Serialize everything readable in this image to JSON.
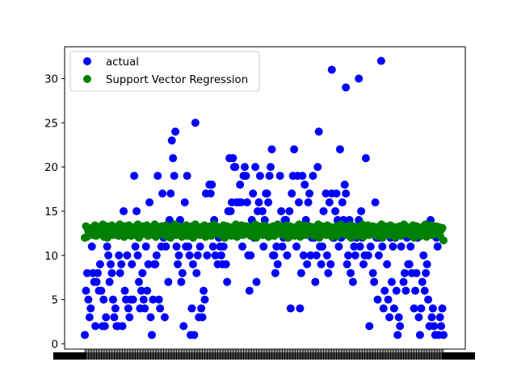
{
  "chart_data": {
    "type": "scatter",
    "title": "",
    "xlabel": "",
    "ylabel": "",
    "ylim": [
      -0.6,
      33.6
    ],
    "yticks": [
      0,
      5,
      10,
      15,
      20,
      25,
      30
    ],
    "legend": {
      "placement": "top-left"
    },
    "grid": false,
    "series": [
      {
        "name": "actual",
        "color": "#0000ff",
        "values": [
          1,
          6,
          8,
          5,
          3,
          4,
          11,
          8,
          7,
          2,
          7,
          8,
          6,
          9,
          6,
          2,
          5,
          2,
          3,
          11,
          10,
          7,
          9,
          8,
          5,
          3,
          4,
          2,
          2,
          10,
          8,
          9,
          2,
          15,
          6,
          5,
          10,
          4,
          3,
          5,
          9,
          5,
          19,
          11,
          15,
          10,
          7,
          4,
          6,
          8,
          5,
          4,
          11,
          6,
          9,
          16,
          3,
          1,
          5,
          9,
          9,
          10,
          19,
          5,
          4,
          11,
          17,
          12,
          3,
          11,
          13,
          7,
          14,
          17,
          23,
          21,
          19,
          24,
          11,
          9,
          10,
          14,
          7,
          8,
          2,
          16,
          11,
          19,
          11,
          10,
          1,
          4,
          9,
          1,
          25,
          8,
          10,
          3,
          11,
          4,
          3,
          6,
          5,
          17,
          10,
          13,
          18,
          17,
          18,
          11,
          14,
          10,
          13,
          9,
          12,
          11,
          10,
          9,
          11,
          12,
          9,
          7,
          15,
          21,
          15,
          16,
          21,
          20,
          20,
          16,
          13,
          16,
          18,
          16,
          11,
          19,
          20,
          19,
          16,
          10,
          6,
          10,
          14,
          17,
          12,
          20,
          7,
          15,
          16,
          19,
          13,
          15,
          11,
          14,
          17,
          17,
          16,
          19,
          20,
          22,
          10,
          10,
          8,
          11,
          9,
          13,
          19,
          15,
          11,
          12,
          14,
          14,
          10,
          12,
          15,
          4,
          17,
          19,
          22,
          13,
          11,
          19,
          16,
          4,
          8,
          19,
          10,
          18,
          14,
          9,
          16,
          17,
          10,
          12,
          19,
          12,
          7,
          10,
          20,
          24,
          11,
          9,
          11,
          15,
          13,
          17,
          10,
          8,
          16,
          9,
          17,
          12,
          12,
          15,
          17,
          14,
          11,
          22,
          12,
          16,
          14,
          18,
          17,
          9,
          10,
          14,
          8,
          12,
          7,
          11,
          10,
          12,
          13,
          14,
          11,
          15,
          12,
          9,
          10,
          21,
          13,
          10,
          2,
          11,
          13,
          8,
          7,
          16,
          12,
          5,
          10,
          12,
          13,
          11,
          4,
          6,
          13,
          9,
          5,
          3,
          12,
          7,
          11,
          4,
          12,
          6,
          1,
          3,
          2,
          11,
          13,
          7,
          8,
          6,
          12,
          9,
          9,
          11,
          8,
          13,
          4,
          6,
          8,
          12,
          3,
          1,
          4,
          7,
          10,
          6,
          8,
          9,
          5,
          2,
          14,
          3,
          4,
          2,
          1,
          12,
          11,
          1,
          3,
          2,
          4,
          1
        ],
        "outliers": [
          {
            "x": 210,
            "y": 31
          },
          {
            "x": 222,
            "y": 29
          },
          {
            "x": 233,
            "y": 30
          },
          {
            "x": 252,
            "y": 32
          }
        ]
      },
      {
        "name": "Support Vector Regression",
        "color": "#008000",
        "values": [
          12.0,
          13.3,
          12.1,
          12.8,
          13.0,
          12.5,
          13.1,
          12.3,
          12.9,
          13.4,
          12.2,
          12.7,
          13.2,
          12.4,
          13.0,
          12.6,
          13.5,
          12.1,
          12.8,
          13.3,
          12.0,
          13.1,
          12.5,
          12.9,
          13.4,
          12.3,
          12.7,
          13.2,
          12.6,
          13.0,
          12.2,
          13.5,
          12.4,
          12.8,
          13.1,
          12.1,
          13.3,
          12.7,
          12.9,
          13.4,
          12.5,
          12.2,
          13.0,
          12.6,
          13.2,
          12.3,
          12.8,
          13.5,
          12.0,
          13.1,
          12.9,
          12.4,
          13.3,
          12.6,
          12.7,
          13.4,
          12.2,
          13.0,
          12.5,
          12.8,
          13.2,
          12.3,
          13.5,
          12.1,
          12.9,
          13.1,
          12.6,
          12.4,
          13.3,
          12.7,
          13.0,
          12.2,
          13.4,
          12.5,
          12.8,
          13.2,
          12.0,
          13.1,
          12.6,
          12.9,
          13.5,
          12.3,
          12.7,
          13.3,
          12.4,
          13.0,
          12.1,
          13.2,
          12.8,
          12.5,
          13.4,
          12.2,
          12.9,
          13.1,
          12.6,
          13.3,
          12.0,
          12.7,
          13.5,
          12.4,
          13.0,
          12.8,
          12.3,
          13.2,
          12.5,
          12.9,
          13.4,
          12.1,
          13.1,
          12.6,
          12.7,
          13.3,
          12.2,
          13.0,
          12.4,
          13.5,
          12.8,
          12.5,
          13.2,
          12.9,
          12.3,
          13.1,
          12.6,
          13.4,
          12.0,
          12.7,
          13.3,
          12.4,
          13.0,
          12.8,
          12.2,
          13.2,
          12.5,
          12.9,
          13.5,
          12.1,
          13.1,
          12.6,
          12.7,
          13.4,
          12.3,
          13.0,
          12.4,
          13.3,
          12.8,
          12.5,
          13.2,
          12.2,
          12.9,
          13.1,
          12.6,
          13.5,
          12.0,
          12.7,
          13.3,
          12.4,
          13.0,
          12.8,
          12.3,
          13.4,
          12.5,
          12.9,
          13.2,
          12.1,
          13.1,
          12.6,
          12.7,
          13.3,
          12.2,
          13.0,
          12.4,
          13.5,
          12.8,
          12.5,
          13.2,
          12.9,
          12.3,
          13.1,
          12.6,
          13.4,
          12.0,
          12.7,
          13.3,
          12.4,
          13.0,
          12.8,
          12.2,
          13.2,
          12.5,
          12.9,
          13.5,
          12.1,
          13.1,
          12.6,
          12.7,
          13.4,
          12.3,
          13.0,
          12.4,
          13.3,
          12.8,
          12.5,
          13.2,
          12.2,
          12.9,
          13.1,
          12.6,
          13.5,
          12.0,
          12.7,
          13.3,
          12.4,
          13.0,
          12.8,
          12.3,
          13.4,
          12.5,
          12.9,
          13.2,
          12.1,
          13.1,
          12.6,
          12.7,
          13.3,
          12.2,
          13.0,
          12.4,
          13.5,
          12.8,
          12.5,
          13.2,
          12.9,
          12.3,
          13.1,
          12.6,
          13.4,
          12.0,
          12.7,
          13.3,
          12.4,
          13.0,
          12.8,
          12.2,
          13.2,
          12.5,
          12.9,
          13.5,
          12.1,
          13.1,
          12.6,
          12.7,
          13.4,
          12.3,
          13.0,
          12.4,
          13.3,
          12.8,
          12.5,
          13.2,
          12.2,
          12.9,
          13.1,
          12.6,
          13.5,
          12.0,
          12.7,
          13.3,
          12.4,
          13.0,
          12.8,
          12.3,
          13.4,
          12.5,
          12.9,
          13.2,
          12.1,
          13.1,
          12.6,
          12.7,
          13.3,
          12.2,
          13.0,
          12.4,
          13.5,
          12.8,
          12.5,
          13.2,
          12.9,
          12.3,
          13.1,
          12.6,
          13.4,
          12.0,
          12.7,
          13.3,
          12.4,
          13.0,
          12.8,
          12.2,
          13.2,
          12.5,
          12.9,
          13.5,
          12.1,
          13.1,
          12.6,
          12.7,
          13.4,
          12.3,
          13.0,
          12.4,
          13.3,
          12.8,
          12.5,
          13.2,
          12.2,
          12.9,
          13.1,
          11.7
        ]
      }
    ]
  }
}
